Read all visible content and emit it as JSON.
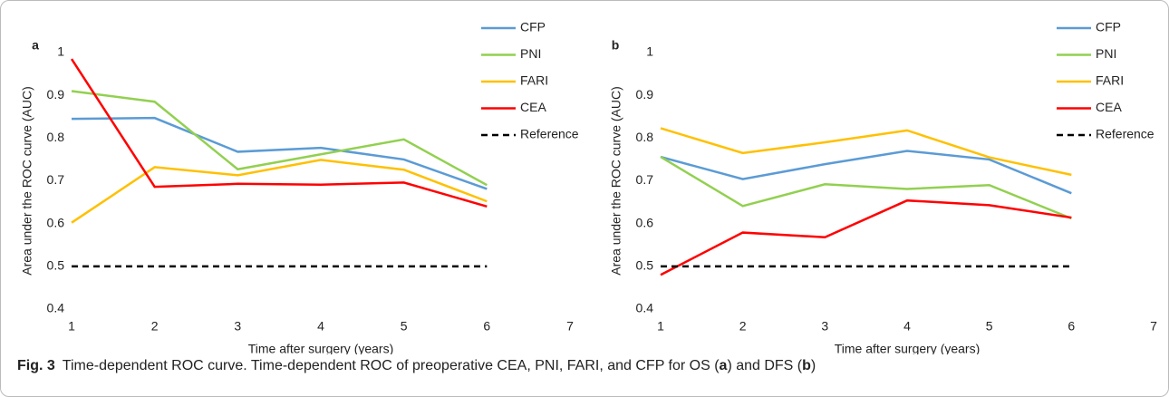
{
  "chart_data": [
    {
      "type": "line",
      "panel_label": "a",
      "xlabel": "Time after surgery (years)",
      "ylabel": "Area under the ROC curve (AUC)",
      "x": [
        1,
        2,
        3,
        4,
        5,
        6
      ],
      "xlim": [
        1,
        7
      ],
      "xticks": [
        1,
        2,
        3,
        4,
        5,
        6,
        7
      ],
      "ylim": [
        0.4,
        1
      ],
      "yticks": [
        0.4,
        0.5,
        0.6,
        0.7,
        0.8,
        0.9,
        1
      ],
      "grid": false,
      "legend": "right",
      "series": [
        {
          "name": "CFP",
          "color": "#5b9bd5",
          "style": "solid",
          "values": [
            0.845,
            0.847,
            0.768,
            0.777,
            0.75,
            0.681
          ]
        },
        {
          "name": "PNI",
          "color": "#92d050",
          "style": "solid",
          "values": [
            0.91,
            0.885,
            0.727,
            0.762,
            0.797,
            0.69
          ]
        },
        {
          "name": "FARI",
          "color": "#ffc000",
          "style": "solid",
          "values": [
            0.602,
            0.732,
            0.713,
            0.749,
            0.726,
            0.652
          ]
        },
        {
          "name": "CEA",
          "color": "#ff0000",
          "style": "solid",
          "values": [
            0.985,
            0.686,
            0.693,
            0.691,
            0.696,
            0.64
          ]
        },
        {
          "name": "Reference",
          "color": "#000000",
          "style": "dashed",
          "values": [
            0.5,
            0.5,
            0.5,
            0.5,
            0.5,
            0.5
          ]
        }
      ]
    },
    {
      "type": "line",
      "panel_label": "b",
      "xlabel": "Time after surgery (years)",
      "ylabel": "Area under the ROC curve (AUC)",
      "x": [
        1,
        2,
        3,
        4,
        5,
        6
      ],
      "xlim": [
        1,
        7
      ],
      "xticks": [
        1,
        2,
        3,
        4,
        5,
        6,
        7
      ],
      "ylim": [
        0.4,
        1
      ],
      "yticks": [
        0.4,
        0.5,
        0.6,
        0.7,
        0.8,
        0.9,
        1
      ],
      "grid": false,
      "legend": "right",
      "series": [
        {
          "name": "CFP",
          "color": "#5b9bd5",
          "style": "solid",
          "values": [
            0.756,
            0.704,
            0.739,
            0.77,
            0.75,
            0.671
          ]
        },
        {
          "name": "PNI",
          "color": "#92d050",
          "style": "solid",
          "values": [
            0.756,
            0.641,
            0.692,
            0.681,
            0.69,
            0.612
          ]
        },
        {
          "name": "FARI",
          "color": "#ffc000",
          "style": "solid",
          "values": [
            0.823,
            0.765,
            0.79,
            0.818,
            0.755,
            0.714
          ]
        },
        {
          "name": "CEA",
          "color": "#ff0000",
          "style": "solid",
          "values": [
            0.48,
            0.579,
            0.568,
            0.654,
            0.643,
            0.614
          ]
        },
        {
          "name": "Reference",
          "color": "#000000",
          "style": "dashed",
          "values": [
            0.5,
            0.5,
            0.5,
            0.5,
            0.5,
            0.5
          ]
        }
      ]
    }
  ],
  "caption": {
    "label": "Fig. 3",
    "segments": [
      {
        "text": "Time-dependent ROC curve. Time-dependent ROC of preoperative CEA, PNI, FARI, and CFP for OS (",
        "bold": false
      },
      {
        "text": "a",
        "bold": true
      },
      {
        "text": ") and DFS (",
        "bold": false
      },
      {
        "text": "b",
        "bold": true
      },
      {
        "text": ")",
        "bold": false
      }
    ]
  }
}
